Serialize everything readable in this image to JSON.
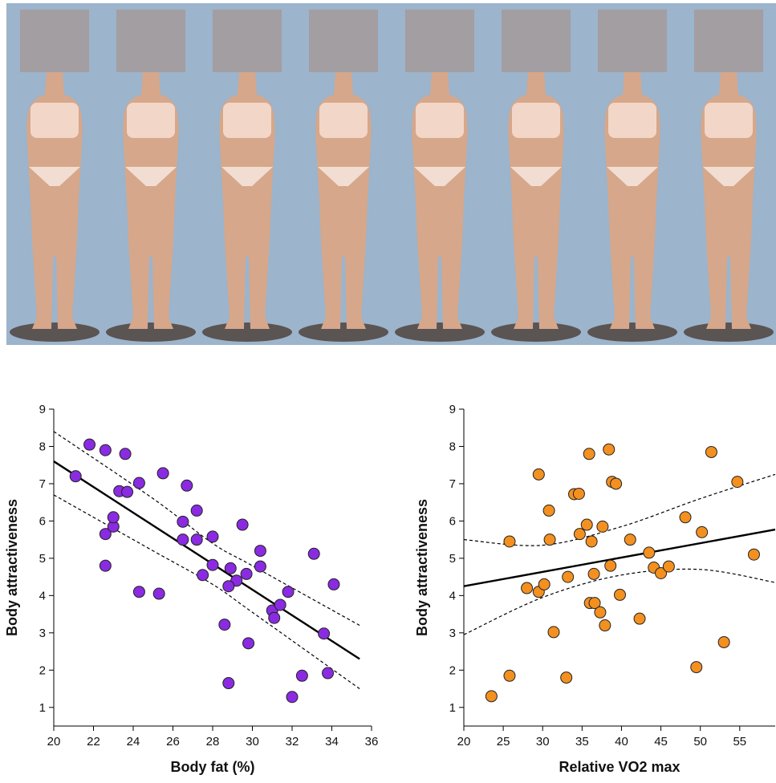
{
  "chart_data": [
    {
      "type": "scatter",
      "xlabel": "Body fat (%)",
      "ylabel": "Body attractiveness",
      "xlim": [
        20,
        36
      ],
      "xticks": [
        20,
        22,
        24,
        26,
        28,
        30,
        32,
        34,
        36
      ],
      "ylim": [
        0.5,
        9
      ],
      "yticks": [
        1,
        2,
        3,
        4,
        5,
        6,
        7,
        8,
        9
      ],
      "color": "#8a2be2",
      "x": [
        21.1,
        21.8,
        22.6,
        23.6,
        23.3,
        23.7,
        24.3,
        25.5,
        26.7,
        27.2,
        26.5,
        26.5,
        27.2,
        28,
        29.5,
        30.4,
        22.6,
        23,
        23,
        22.6,
        24.3,
        25.3,
        27.5,
        28,
        28.9,
        29.2,
        29.7,
        30.4,
        28.8,
        31,
        31.1,
        31.4,
        31.8,
        33.1,
        34.1,
        33.6,
        28.6,
        29.8,
        28.8,
        32.5,
        33.8,
        32
      ],
      "values": [
        7.2,
        8.05,
        7.9,
        7.8,
        6.8,
        6.78,
        7.02,
        7.28,
        6.95,
        6.28,
        5.98,
        5.5,
        5.5,
        5.58,
        5.9,
        5.2,
        5.65,
        5.85,
        6.1,
        4.8,
        4.1,
        4.05,
        4.55,
        4.82,
        4.73,
        4.4,
        4.58,
        4.78,
        4.25,
        3.6,
        3.4,
        3.75,
        4.1,
        5.12,
        4.3,
        2.98,
        3.22,
        2.72,
        1.65,
        1.85,
        1.92,
        1.28
      ],
      "fit": {
        "x": [
          20,
          35.4
        ],
        "values": [
          7.6,
          2.3
        ]
      },
      "band": {
        "x": [
          20,
          25,
          28,
          30,
          35.4
        ],
        "upper": [
          8.4,
          6.6,
          5.4,
          4.8,
          3.2
        ],
        "lower": [
          6.7,
          5.2,
          4.3,
          3.55,
          1.5
        ]
      }
    },
    {
      "type": "scatter",
      "xlabel": "Relative VO2 max",
      "ylabel": "Body attractiveness",
      "xlim": [
        20,
        59.5
      ],
      "xticks": [
        20,
        25,
        30,
        35,
        40,
        45,
        50,
        55
      ],
      "ylim": [
        0.5,
        9
      ],
      "yticks": [
        1,
        2,
        3,
        4,
        5,
        6,
        7,
        8,
        9
      ],
      "color": "#f39020",
      "x": [
        23.5,
        25.8,
        25.8,
        28,
        29.5,
        29.5,
        30.2,
        30.8,
        30.9,
        31.4,
        33,
        33.2,
        34,
        34.6,
        34.7,
        35.6,
        35.9,
        36,
        36.2,
        36.5,
        36.6,
        37.3,
        37.6,
        37.9,
        38.4,
        38.6,
        38.8,
        39.3,
        39.8,
        41.1,
        42.3,
        43.5,
        44.1,
        45,
        46,
        48.1,
        49.5,
        50.2,
        51.4,
        53,
        54.7,
        56.8
      ],
      "values": [
        1.3,
        1.85,
        5.45,
        4.2,
        7.25,
        4.1,
        4.3,
        6.28,
        5.5,
        3.02,
        1.8,
        4.5,
        6.72,
        6.73,
        5.65,
        5.9,
        7.8,
        3.8,
        5.45,
        4.58,
        3.8,
        3.55,
        5.85,
        3.2,
        7.92,
        4.8,
        7.05,
        7.0,
        4.02,
        5.5,
        3.38,
        5.15,
        4.75,
        4.6,
        4.78,
        6.1,
        2.08,
        5.7,
        7.85,
        2.75,
        7.05,
        5.1
      ],
      "fit": {
        "x": [
          20,
          59.5
        ],
        "values": [
          4.25,
          5.77
        ]
      },
      "band": {
        "x": [
          20,
          30,
          40,
          50,
          59.5
        ],
        "upper": [
          5.5,
          5.35,
          5.85,
          6.6,
          7.25
        ],
        "lower": [
          2.95,
          3.95,
          4.55,
          4.7,
          4.35
        ]
      }
    }
  ]
}
